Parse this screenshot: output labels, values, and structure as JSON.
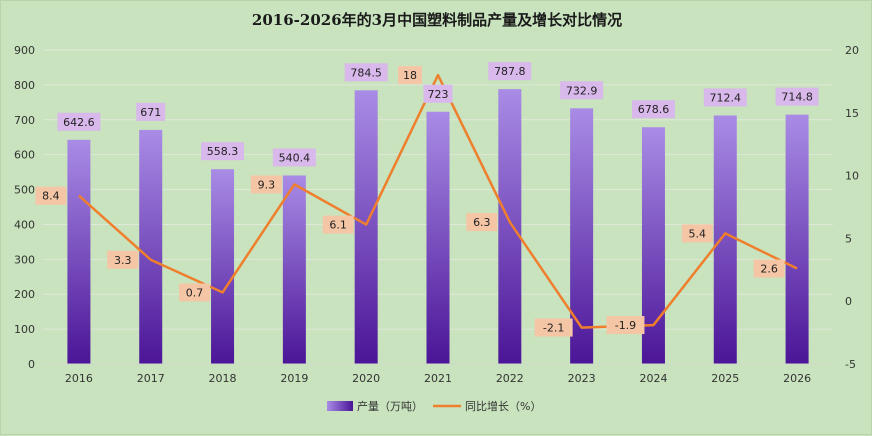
{
  "chart_data": {
    "type": "bar",
    "title": "2016-2026年的3月中国塑料制品产量及增长对比情况",
    "categories": [
      "2016",
      "2017",
      "2018",
      "2019",
      "2020",
      "2021",
      "2022",
      "2023",
      "2024",
      "2025",
      "2026"
    ],
    "series": [
      {
        "name": "产量（万吨）",
        "type": "bar",
        "axis": "left",
        "values": [
          642.6,
          671,
          558.3,
          540.4,
          784.5,
          723,
          787.8,
          732.9,
          678.6,
          712.4,
          714.8
        ]
      },
      {
        "name": "同比增长（%）",
        "type": "line",
        "axis": "right",
        "values": [
          8.4,
          3.3,
          0.7,
          9.3,
          6.1,
          18,
          6.3,
          -2.1,
          -1.9,
          5.4,
          2.6
        ]
      }
    ],
    "y_left": {
      "min": 0,
      "max": 900,
      "step": 100
    },
    "y_right": {
      "min": -5,
      "max": 20,
      "step": 5
    },
    "grid": true,
    "legend_position": "bottom",
    "colors": {
      "bar_top": "#a98ce6",
      "bar_bottom": "#4b1597",
      "line": "#ef7f2d",
      "label_bar": "#d9b8ec",
      "label_line": "#f5c6a6",
      "grid": "#dfe9d9"
    }
  }
}
